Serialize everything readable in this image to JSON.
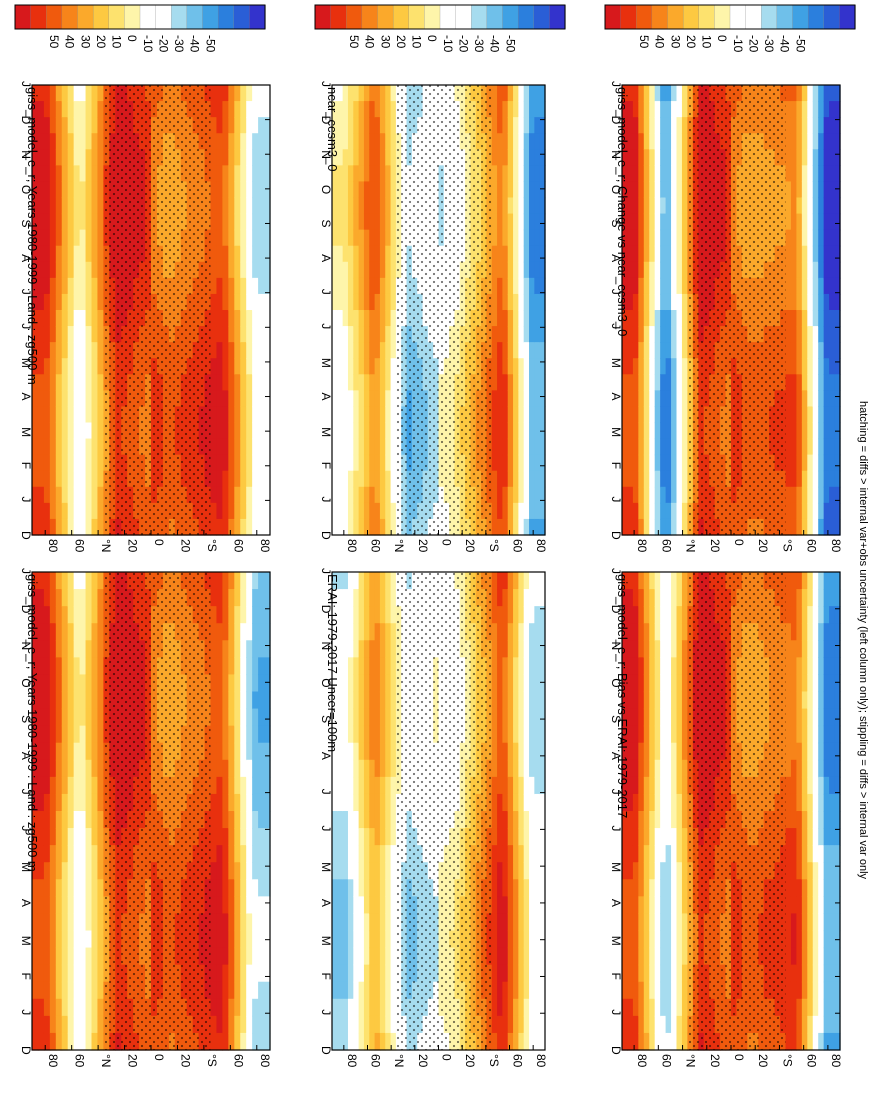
{
  "figure": {
    "orientation": "rotated 90 degrees clockwise (landscape figure on portrait page)",
    "footnote": "hatching = diffs > internal var+obs uncertainty (left column only); stippling = diffs > internal var only"
  },
  "colorbar": {
    "labels": [
      "50",
      "40",
      "30",
      "20",
      "10",
      "0",
      "-10",
      "-20",
      "-30",
      "-40",
      "-50"
    ],
    "colors": [
      "#d7191c",
      "#e8300e",
      "#f05a0d",
      "#f7841a",
      "#fba92b",
      "#fdc941",
      "#fde26e",
      "#fef5aa",
      "#ffffff",
      "#ffffff",
      "#a6dcef",
      "#6fc0ea",
      "#3fa1e4",
      "#2b7fdd",
      "#2a5ed6",
      "#3333cc"
    ]
  },
  "chart_data": [
    {
      "type": "heatmap",
      "title": "giss_model_e_r; Years 1980-1999 : Land : zg500 m",
      "months": [
        "D",
        "J",
        "F",
        "M",
        "A",
        "M",
        "J",
        "J",
        "A",
        "S",
        "O",
        "N",
        "D",
        "J"
      ],
      "lat_labels": [
        "80",
        "60",
        "°N",
        "20",
        "0",
        "20",
        "°S",
        "60",
        "80"
      ],
      "z_range": [
        -50,
        50
      ],
      "stipple": true,
      "summary": {
        "north_polar": 45,
        "north_mid": -5,
        "nh_subtropics": 50,
        "tropics": 30,
        "sh_mid": 45,
        "south_polar": -10
      }
    },
    {
      "type": "heatmap",
      "title": "giss_model_e_r; Years 1980-1999 : Land : zg500 m",
      "months": [
        "D",
        "J",
        "F",
        "M",
        "A",
        "M",
        "J",
        "J",
        "A",
        "S",
        "O",
        "N",
        "D",
        "J"
      ],
      "lat_labels": [
        "80",
        "60",
        "°N",
        "20",
        "0",
        "20",
        "°S",
        "60",
        "80"
      ],
      "z_range": [
        -50,
        50
      ],
      "stipple": true,
      "summary": {
        "north_polar": 45,
        "north_mid": -5,
        "nh_subtropics": 50,
        "tropics": 30,
        "sh_mid": 45,
        "south_polar": -20
      }
    },
    {
      "type": "heatmap",
      "title": "ERAI: 1979-2017 Uncer=100m",
      "months": [
        "D",
        "J",
        "F",
        "M",
        "A",
        "M",
        "J",
        "J",
        "A",
        "S",
        "O",
        "N",
        "D",
        "J"
      ],
      "lat_labels": [
        "80",
        "60",
        "°N",
        "20",
        "0",
        "20",
        "°S",
        "60",
        "80"
      ],
      "z_range": [
        -50,
        50
      ],
      "stipple": true,
      "summary": {
        "north_polar": -15,
        "north_mid": 25,
        "nh_subtropics": -15,
        "tropics": 0,
        "sh_mid": 45,
        "south_polar": -10
      }
    },
    {
      "type": "heatmap",
      "title": "ncar_ccsm3_0",
      "months": [
        "D",
        "J",
        "F",
        "M",
        "A",
        "M",
        "J",
        "J",
        "A",
        "S",
        "O",
        "N",
        "D",
        "J"
      ],
      "lat_labels": [
        "80",
        "60",
        "°N",
        "20",
        "0",
        "20",
        "°S",
        "60",
        "80"
      ],
      "z_range": [
        -50,
        50
      ],
      "stipple": true,
      "summary": {
        "north_polar": 0,
        "north_mid": 35,
        "nh_subtropics": -20,
        "tropics": 0,
        "sh_mid": 40,
        "south_polar": -30
      }
    },
    {
      "type": "heatmap",
      "title": "giss_model_e_r; Bias vs ERAI: 1979-2017",
      "months": [
        "D",
        "J",
        "F",
        "M",
        "A",
        "M",
        "J",
        "J",
        "A",
        "S",
        "O",
        "N",
        "D",
        "J"
      ],
      "lat_labels": [
        "80",
        "60",
        "°N",
        "20",
        "0",
        "20",
        "°S",
        "60",
        "80"
      ],
      "z_range": [
        -50,
        50
      ],
      "stipple": true,
      "summary": {
        "north_polar": 45,
        "north_mid": -15,
        "nh_subtropics": 50,
        "tropics": 30,
        "sh_mid": 40,
        "south_polar": -30
      }
    },
    {
      "type": "heatmap",
      "title": "giss_model_e_r; Change vs ncar_ccsm3_0",
      "months": [
        "D",
        "J",
        "F",
        "M",
        "A",
        "M",
        "J",
        "J",
        "A",
        "S",
        "O",
        "N",
        "D",
        "J"
      ],
      "lat_labels": [
        "80",
        "60",
        "°N",
        "20",
        "0",
        "20",
        "°S",
        "60",
        "80"
      ],
      "z_range": [
        -50,
        50
      ],
      "stipple": true,
      "summary": {
        "north_polar": 45,
        "north_mid": -35,
        "nh_subtropics": 50,
        "tropics": 30,
        "sh_mid": 35,
        "south_polar": -45
      }
    }
  ]
}
